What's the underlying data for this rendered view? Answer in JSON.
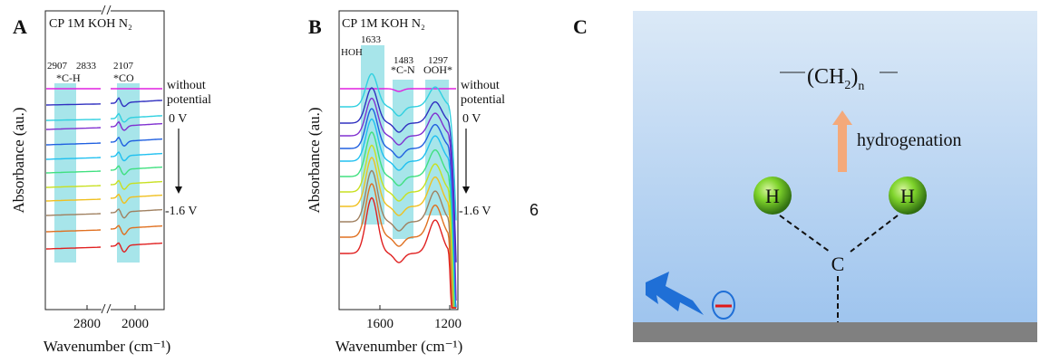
{
  "page": {
    "stray_label": "6"
  },
  "chart_data": [
    {
      "panel": "A",
      "type": "line",
      "title": "CP 1M KOH N₂",
      "xlabel": "Wavenumber (cm⁻¹)",
      "ylabel": "Absorbance (au.)",
      "x_reversed": true,
      "x_axis_break": true,
      "x_ticks": [
        "2800",
        "2000"
      ],
      "y_ticks": [],
      "top_label": "without\npotential",
      "start_label": "0 V",
      "end_label": "-1.6 V",
      "bands": [
        {
          "center": "2907 2833",
          "label": "*C-H",
          "range_text": "2907 2833"
        },
        {
          "center": "2107",
          "label": "*CO",
          "range_text": "2107"
        }
      ],
      "band_numbers": [
        "2907",
        "2833",
        "2107"
      ],
      "series_colors": [
        "#e020e0",
        "#3030c0",
        "#30d0e0",
        "#8030d0",
        "#2060e0",
        "#20c0f0",
        "#40e080",
        "#c8e020",
        "#f0c020",
        "#a08060",
        "#e07020",
        "#e02020"
      ],
      "series_offsets": [
        98,
        116,
        133,
        143,
        160,
        176,
        191,
        207,
        222,
        238,
        256,
        275
      ]
    },
    {
      "panel": "B",
      "type": "line",
      "title": "CP 1M KOH N₂",
      "xlabel": "Wavenumber (cm⁻¹)",
      "ylabel": "Absorbance (au.)",
      "x_reversed": true,
      "x_ticks": [
        "1600",
        "1200"
      ],
      "y_ticks": [],
      "top_label": "without\npotential",
      "start_label": "0 V",
      "end_label": "-1.6 V",
      "band_labels": [
        {
          "number": "1633",
          "label": "HOH"
        },
        {
          "number": "1483",
          "label": "*C-N"
        },
        {
          "number": "1297",
          "label": "OOH*"
        }
      ],
      "series_colors": [
        "#e020e0",
        "#30d0e0",
        "#3030c0",
        "#8030d0",
        "#2060e0",
        "#20c0f0",
        "#40e080",
        "#c8e020",
        "#f0c020",
        "#a08060",
        "#e07020",
        "#e02020"
      ],
      "series_offsets": [
        98,
        118,
        136,
        150,
        164,
        178,
        195,
        212,
        228,
        245,
        262,
        280
      ]
    }
  ],
  "diagram": {
    "panel": "C",
    "formula_main": "(CH",
    "formula_sub": "2",
    "formula_close": ")",
    "formula_n": "n",
    "arrow_label": "hydrogenation",
    "atom_left": "H",
    "atom_right": "H",
    "atom_center": "C",
    "background_top": "#dbe9f7",
    "background_bottom": "#9ec4ee",
    "surface_color": "#808080",
    "arrow_color": "#f4a97a",
    "h_sphere_color": "#7fd42c"
  }
}
